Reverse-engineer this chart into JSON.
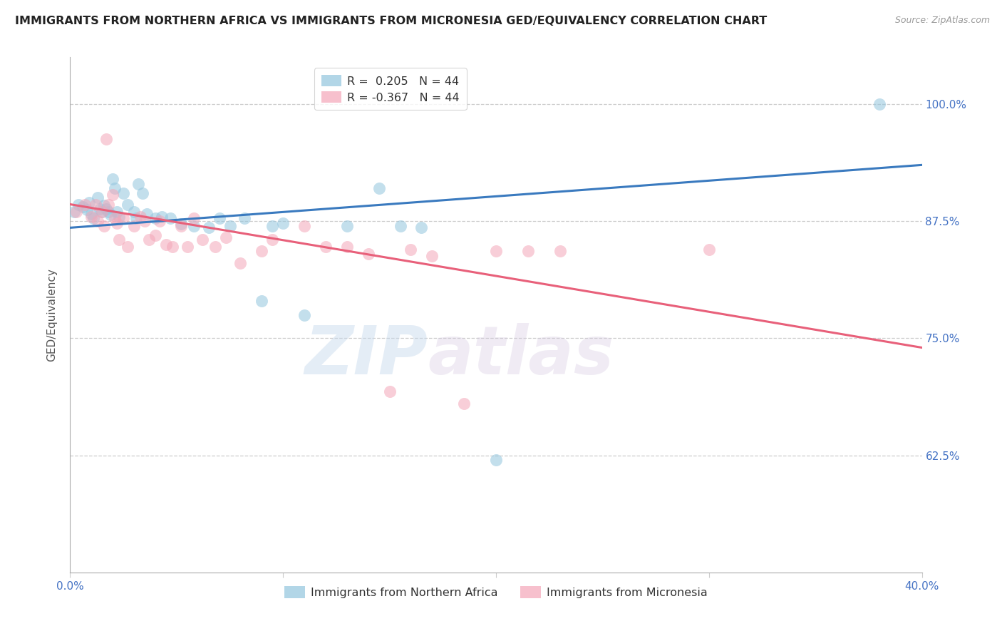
{
  "title": "IMMIGRANTS FROM NORTHERN AFRICA VS IMMIGRANTS FROM MICRONESIA GED/EQUIVALENCY CORRELATION CHART",
  "source": "Source: ZipAtlas.com",
  "ylabel": "GED/Equivalency",
  "ytick_labels": [
    "100.0%",
    "87.5%",
    "75.0%",
    "62.5%"
  ],
  "ytick_values": [
    1.0,
    0.875,
    0.75,
    0.625
  ],
  "xlim": [
    0.0,
    0.4
  ],
  "ylim": [
    0.5,
    1.05
  ],
  "blue_R": 0.205,
  "blue_N": 44,
  "pink_R": -0.367,
  "pink_N": 44,
  "blue_color": "#92c5de",
  "pink_color": "#f4a6b8",
  "blue_line_color": "#3a7abf",
  "pink_line_color": "#e8607a",
  "legend_label_blue": "Immigrants from Northern Africa",
  "legend_label_pink": "Immigrants from Micronesia",
  "watermark_zip": "ZIP",
  "watermark_atlas": "atlas",
  "blue_line_y0": 0.868,
  "blue_line_y1": 0.935,
  "pink_line_y0": 0.893,
  "pink_line_y1": 0.74,
  "blue_dots_x": [
    0.002,
    0.004,
    0.006,
    0.008,
    0.009,
    0.01,
    0.011,
    0.013,
    0.014,
    0.015,
    0.016,
    0.017,
    0.018,
    0.019,
    0.02,
    0.021,
    0.022,
    0.023,
    0.025,
    0.027,
    0.03,
    0.031,
    0.032,
    0.034,
    0.036,
    0.04,
    0.043,
    0.047,
    0.052,
    0.058,
    0.065,
    0.07,
    0.075,
    0.082,
    0.09,
    0.095,
    0.1,
    0.11,
    0.13,
    0.145,
    0.155,
    0.165,
    0.2,
    0.38
  ],
  "blue_dots_y": [
    0.885,
    0.893,
    0.89,
    0.887,
    0.895,
    0.883,
    0.878,
    0.9,
    0.888,
    0.885,
    0.892,
    0.888,
    0.885,
    0.882,
    0.92,
    0.91,
    0.885,
    0.88,
    0.905,
    0.893,
    0.885,
    0.878,
    0.915,
    0.905,
    0.883,
    0.878,
    0.88,
    0.878,
    0.872,
    0.87,
    0.868,
    0.878,
    0.87,
    0.878,
    0.79,
    0.87,
    0.873,
    0.775,
    0.87,
    0.91,
    0.87,
    0.868,
    0.62,
    1.0
  ],
  "pink_dots_x": [
    0.003,
    0.007,
    0.01,
    0.012,
    0.013,
    0.015,
    0.016,
    0.017,
    0.018,
    0.02,
    0.021,
    0.022,
    0.023,
    0.025,
    0.027,
    0.03,
    0.033,
    0.035,
    0.037,
    0.04,
    0.042,
    0.045,
    0.048,
    0.052,
    0.055,
    0.058,
    0.062,
    0.068,
    0.073,
    0.08,
    0.09,
    0.095,
    0.11,
    0.12,
    0.13,
    0.14,
    0.15,
    0.16,
    0.17,
    0.185,
    0.2,
    0.215,
    0.23,
    0.3
  ],
  "pink_dots_y": [
    0.885,
    0.893,
    0.88,
    0.893,
    0.875,
    0.885,
    0.87,
    0.963,
    0.893,
    0.903,
    0.878,
    0.873,
    0.855,
    0.878,
    0.848,
    0.87,
    0.88,
    0.875,
    0.855,
    0.86,
    0.875,
    0.85,
    0.848,
    0.87,
    0.848,
    0.878,
    0.855,
    0.848,
    0.858,
    0.83,
    0.843,
    0.855,
    0.87,
    0.848,
    0.848,
    0.84,
    0.693,
    0.845,
    0.838,
    0.68,
    0.843,
    0.843,
    0.843,
    0.845
  ]
}
